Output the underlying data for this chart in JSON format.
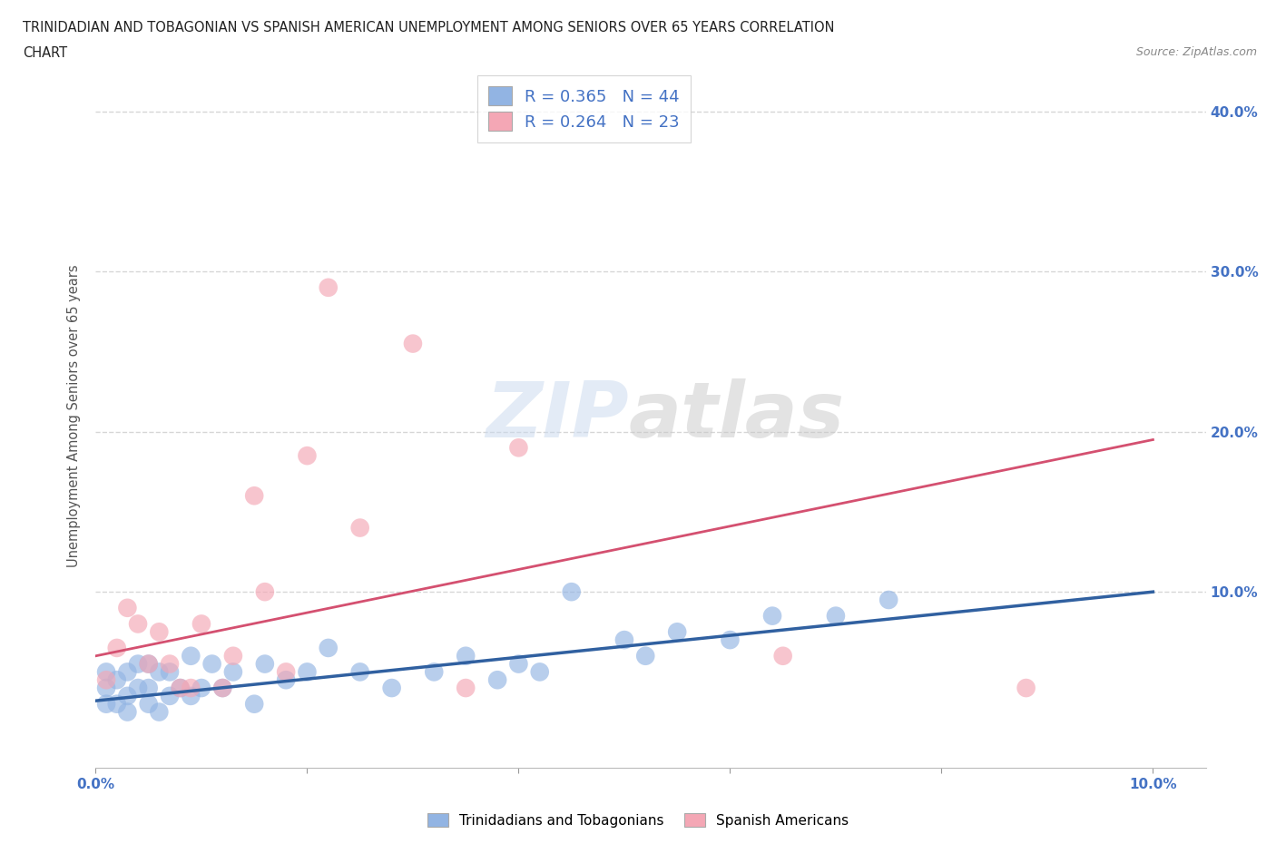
{
  "title_line1": "TRINIDADIAN AND TOBAGONIAN VS SPANISH AMERICAN UNEMPLOYMENT AMONG SENIORS OVER 65 YEARS CORRELATION",
  "title_line2": "CHART",
  "source_text": "Source: ZipAtlas.com",
  "ylabel": "Unemployment Among Seniors over 65 years",
  "xlim": [
    0.0,
    0.105
  ],
  "ylim": [
    -0.01,
    0.43
  ],
  "xtick_positions": [
    0.0,
    0.02,
    0.04,
    0.06,
    0.08,
    0.1
  ],
  "xticklabels": [
    "0.0%",
    "",
    "",
    "",
    "",
    "10.0%"
  ],
  "ytick_positions": [
    0.1,
    0.2,
    0.3,
    0.4
  ],
  "yticklabels": [
    "10.0%",
    "20.0%",
    "30.0%",
    "40.0%"
  ],
  "legend_labels": [
    "Trinidadians and Tobagonians",
    "Spanish Americans"
  ],
  "R_blue": 0.365,
  "N_blue": 44,
  "R_pink": 0.264,
  "N_pink": 23,
  "blue_color": "#92b4e3",
  "pink_color": "#f4a7b5",
  "blue_line_color": "#3060a0",
  "pink_line_color": "#d45070",
  "blue_scatter_x": [
    0.001,
    0.001,
    0.001,
    0.002,
    0.002,
    0.003,
    0.003,
    0.003,
    0.004,
    0.004,
    0.005,
    0.005,
    0.005,
    0.006,
    0.006,
    0.007,
    0.007,
    0.008,
    0.009,
    0.009,
    0.01,
    0.011,
    0.012,
    0.013,
    0.015,
    0.016,
    0.018,
    0.02,
    0.022,
    0.025,
    0.028,
    0.032,
    0.035,
    0.038,
    0.04,
    0.042,
    0.045,
    0.05,
    0.052,
    0.055,
    0.06,
    0.064,
    0.07,
    0.075
  ],
  "blue_scatter_y": [
    0.03,
    0.04,
    0.05,
    0.03,
    0.045,
    0.025,
    0.035,
    0.05,
    0.04,
    0.055,
    0.03,
    0.04,
    0.055,
    0.025,
    0.05,
    0.035,
    0.05,
    0.04,
    0.035,
    0.06,
    0.04,
    0.055,
    0.04,
    0.05,
    0.03,
    0.055,
    0.045,
    0.05,
    0.065,
    0.05,
    0.04,
    0.05,
    0.06,
    0.045,
    0.055,
    0.05,
    0.1,
    0.07,
    0.06,
    0.075,
    0.07,
    0.085,
    0.085,
    0.095
  ],
  "pink_scatter_x": [
    0.001,
    0.002,
    0.003,
    0.004,
    0.005,
    0.006,
    0.007,
    0.008,
    0.009,
    0.01,
    0.012,
    0.013,
    0.015,
    0.016,
    0.018,
    0.02,
    0.022,
    0.025,
    0.03,
    0.035,
    0.04,
    0.065,
    0.088
  ],
  "pink_scatter_y": [
    0.045,
    0.065,
    0.09,
    0.08,
    0.055,
    0.075,
    0.055,
    0.04,
    0.04,
    0.08,
    0.04,
    0.06,
    0.16,
    0.1,
    0.05,
    0.185,
    0.29,
    0.14,
    0.255,
    0.04,
    0.19,
    0.06,
    0.04
  ],
  "blue_trend_x": [
    0.0,
    0.1
  ],
  "blue_trend_y": [
    0.032,
    0.1
  ],
  "pink_trend_x": [
    0.0,
    0.1
  ],
  "pink_trend_y": [
    0.06,
    0.195
  ],
  "grid_color": "#cccccc",
  "tick_color": "#4472c4",
  "ylabel_color": "#555555",
  "watermark_text": "ZIPatlas",
  "watermark_color": "lightgray",
  "watermark_alpha": 0.35
}
